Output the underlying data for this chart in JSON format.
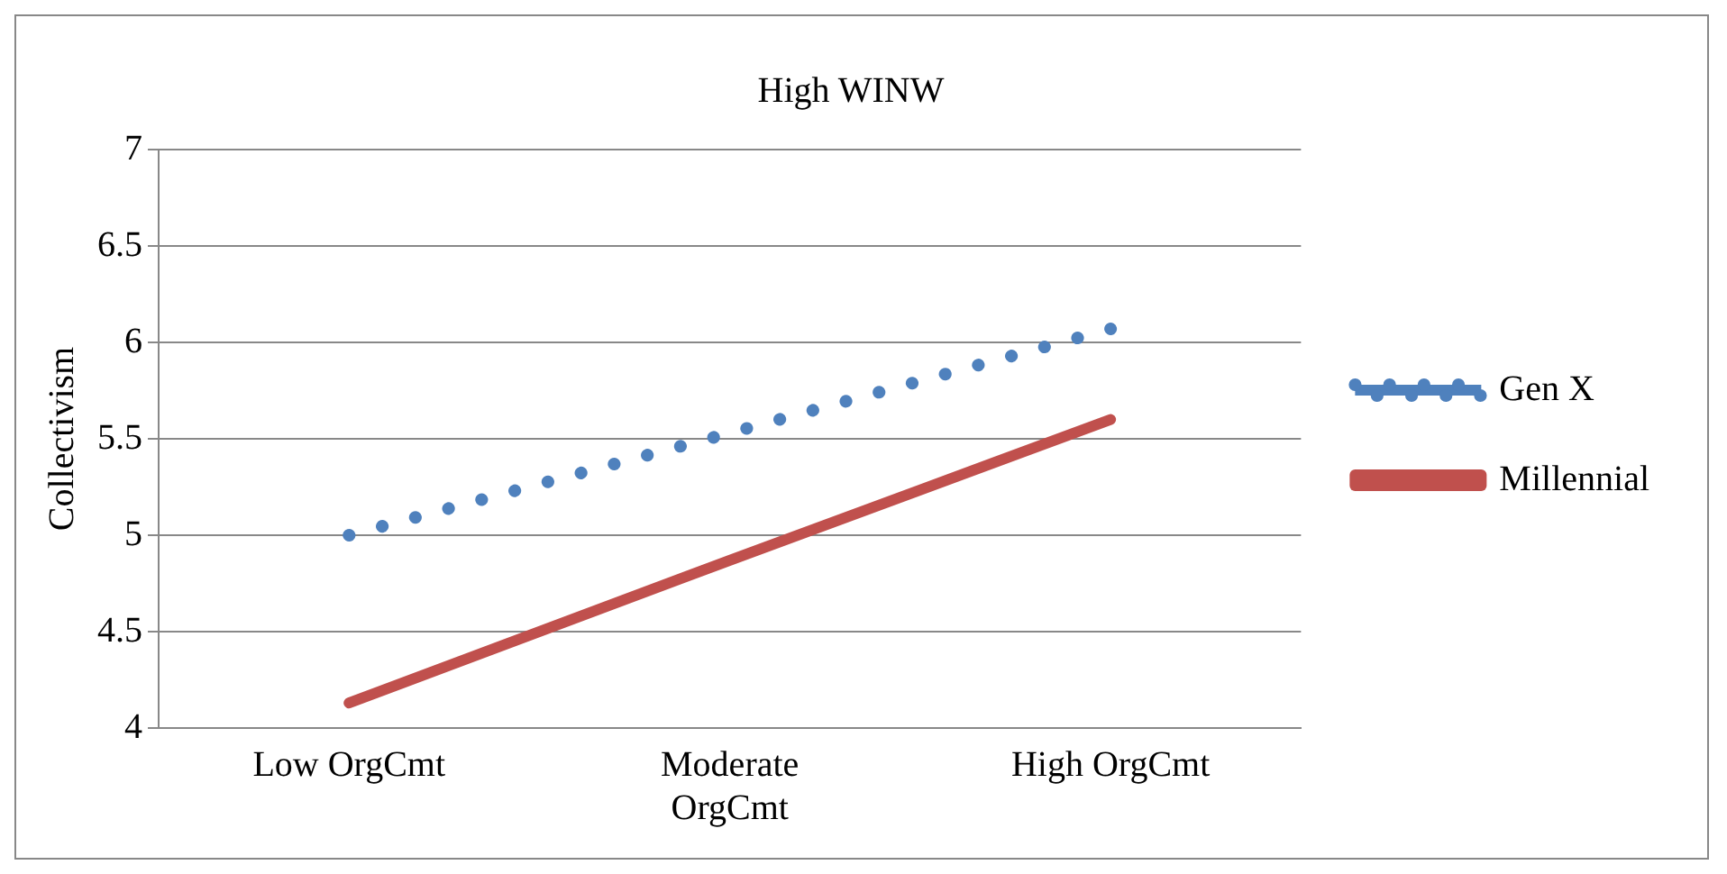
{
  "chart_data": {
    "type": "line",
    "title": "High WINW",
    "ylabel": "Collectivism",
    "categories": [
      "Low OrgCmt",
      "Moderate OrgCmt",
      "High OrgCmt"
    ],
    "series": [
      {
        "name": "Gen X",
        "color": "#4f81bd",
        "values": [
          5.0,
          5.53,
          6.07
        ],
        "line_style": "dotted"
      },
      {
        "name": "Millennial",
        "color": "#c0504d",
        "values": [
          4.13,
          4.87,
          5.6
        ],
        "line_style": "solid"
      }
    ],
    "ylim": [
      4,
      7
    ],
    "yticks": [
      4,
      4.5,
      5,
      5.5,
      6,
      6.5,
      7
    ],
    "grid": "y",
    "legend": "right",
    "marker": "none"
  }
}
